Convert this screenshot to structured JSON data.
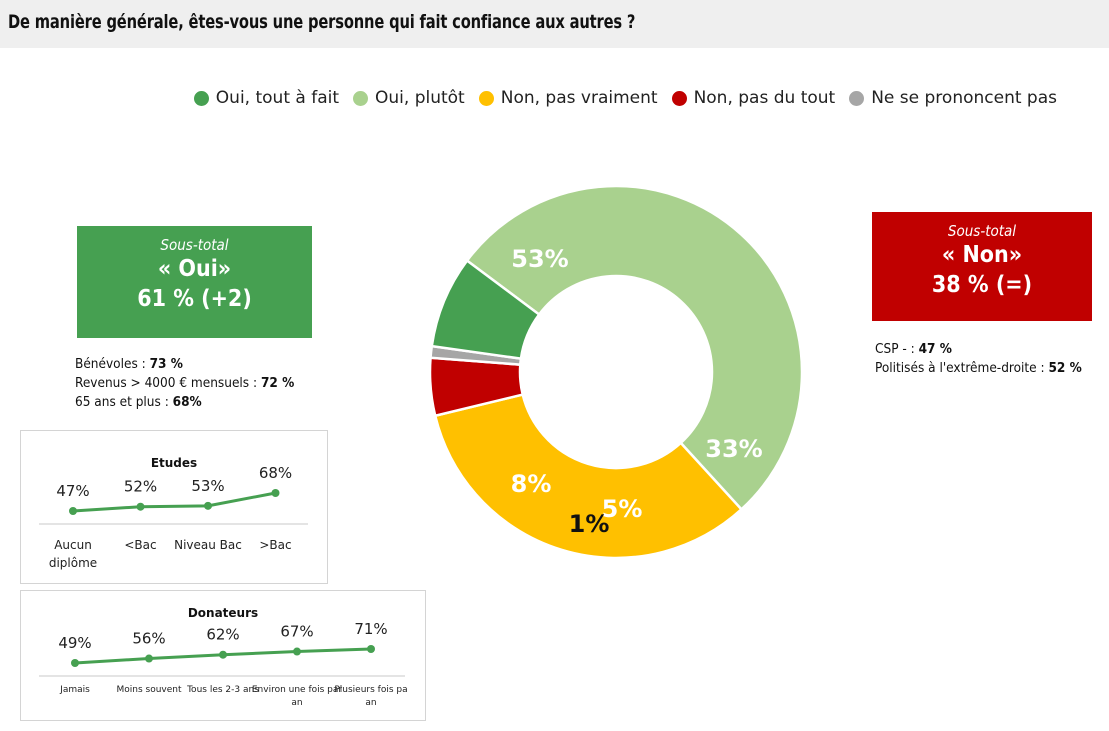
{
  "header": {
    "title": "De manière générale, êtes-vous une personne qui fait confiance aux autres ?"
  },
  "chart_data": [
    {
      "type": "pie",
      "variant": "donut",
      "categories": [
        "Oui, tout à fait",
        "Oui, plutôt",
        "Non, pas vraiment",
        "Non, pas du tout",
        "Ne se prononcent pas"
      ],
      "values": [
        8,
        53,
        33,
        5,
        1
      ],
      "labels": [
        "8%",
        "53%",
        "33%",
        "5%",
        "1%"
      ],
      "colors": [
        "#46a051",
        "#a9d18e",
        "#ffc000",
        "#c00000",
        "#a6a6a6"
      ],
      "legend_position": "top-right"
    },
    {
      "type": "line",
      "title": "Etudes",
      "categories": [
        "Aucun diplôme",
        "<Bac",
        "Niveau Bac",
        ">Bac"
      ],
      "values": [
        47,
        52,
        53,
        68
      ],
      "labels": [
        "47%",
        "52%",
        "53%",
        "68%"
      ],
      "color": "#46a051"
    },
    {
      "type": "line",
      "title": "Donateurs",
      "categories": [
        "Jamais",
        "Moins souvent",
        "Tous les 2-3 ans",
        "Environ une fois par an",
        "Plusieurs fois par an"
      ],
      "values": [
        49,
        56,
        62,
        67,
        71
      ],
      "labels": [
        "49%",
        "56%",
        "62%",
        "67%",
        "71%"
      ],
      "color": "#46a051"
    }
  ],
  "subtotal_oui": {
    "caption": "Sous-total",
    "label": "« Oui»",
    "value": "61 % (+2)",
    "color": "#46a051"
  },
  "subtotal_non": {
    "caption": "Sous-total",
    "label": "« Non»",
    "value": "38 % (=)",
    "color": "#c00000"
  },
  "notes_oui": [
    {
      "label": "Bénévoles : ",
      "value": "73 %"
    },
    {
      "label": "Revenus > 4000 € mensuels : ",
      "value": "72 %"
    },
    {
      "label": "65 ans et plus : ",
      "value": "68%"
    }
  ],
  "notes_non": [
    {
      "label": "CSP - : ",
      "value": "47 %"
    },
    {
      "label": "Politisés à l'extrême-droite : ",
      "value": "52 %"
    }
  ]
}
